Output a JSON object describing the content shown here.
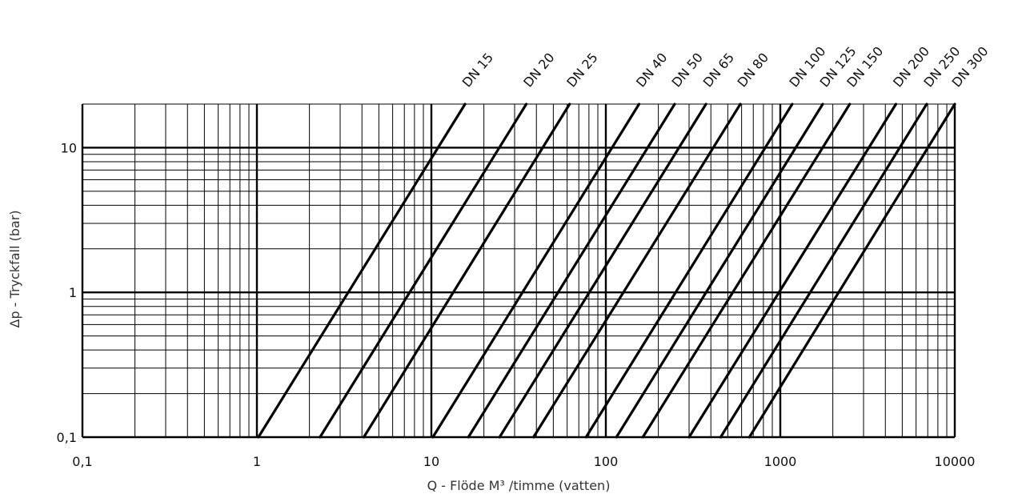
{
  "chart_data": {
    "type": "line",
    "xlabel": "Q - Flöde M³ /timme (vatten)",
    "ylabel": "Δp - Tryckfall (bar)",
    "x_scale": "log",
    "y_scale": "log",
    "xlim": [
      0.1,
      10000
    ],
    "ylim": [
      0.1,
      20
    ],
    "grid": true,
    "x_ticks": [
      {
        "value": 0.1,
        "label": "0,1"
      },
      {
        "value": 1,
        "label": "1"
      },
      {
        "value": 10,
        "label": "10"
      },
      {
        "value": 100,
        "label": "100"
      },
      {
        "value": 1000,
        "label": "1000"
      },
      {
        "value": 10000,
        "label": "10000"
      }
    ],
    "y_ticks": [
      {
        "value": 0.1,
        "label": "0,1"
      },
      {
        "value": 1,
        "label": "1"
      },
      {
        "value": 10,
        "label": "10"
      }
    ],
    "series": [
      {
        "name": "DN 15",
        "x": [
          1.02,
          15.6
        ],
        "y": [
          0.1,
          20
        ]
      },
      {
        "name": "DN 20",
        "x": [
          2.3,
          35
        ],
        "y": [
          0.1,
          20
        ]
      },
      {
        "name": "DN 25",
        "x": [
          4.1,
          62
        ],
        "y": [
          0.1,
          20
        ]
      },
      {
        "name": "DN 40",
        "x": [
          10.2,
          155
        ],
        "y": [
          0.1,
          20
        ]
      },
      {
        "name": "DN 50",
        "x": [
          16.3,
          248
        ],
        "y": [
          0.1,
          20
        ]
      },
      {
        "name": "DN 65",
        "x": [
          24.6,
          375
        ],
        "y": [
          0.1,
          20
        ]
      },
      {
        "name": "DN 80",
        "x": [
          38.5,
          590
        ],
        "y": [
          0.1,
          20
        ]
      },
      {
        "name": "DN 100",
        "x": [
          77,
          1170
        ],
        "y": [
          0.1,
          20
        ]
      },
      {
        "name": "DN 125",
        "x": [
          115,
          1750
        ],
        "y": [
          0.1,
          20
        ]
      },
      {
        "name": "DN 150",
        "x": [
          163,
          2500
        ],
        "y": [
          0.1,
          20
        ]
      },
      {
        "name": "DN 200",
        "x": [
          300,
          4600
        ],
        "y": [
          0.1,
          20
        ]
      },
      {
        "name": "DN 250",
        "x": [
          455,
          6900
        ],
        "y": [
          0.1,
          20
        ]
      },
      {
        "name": "DN 300",
        "x": [
          665,
          10000
        ],
        "y": [
          0.1,
          20
        ]
      }
    ]
  }
}
